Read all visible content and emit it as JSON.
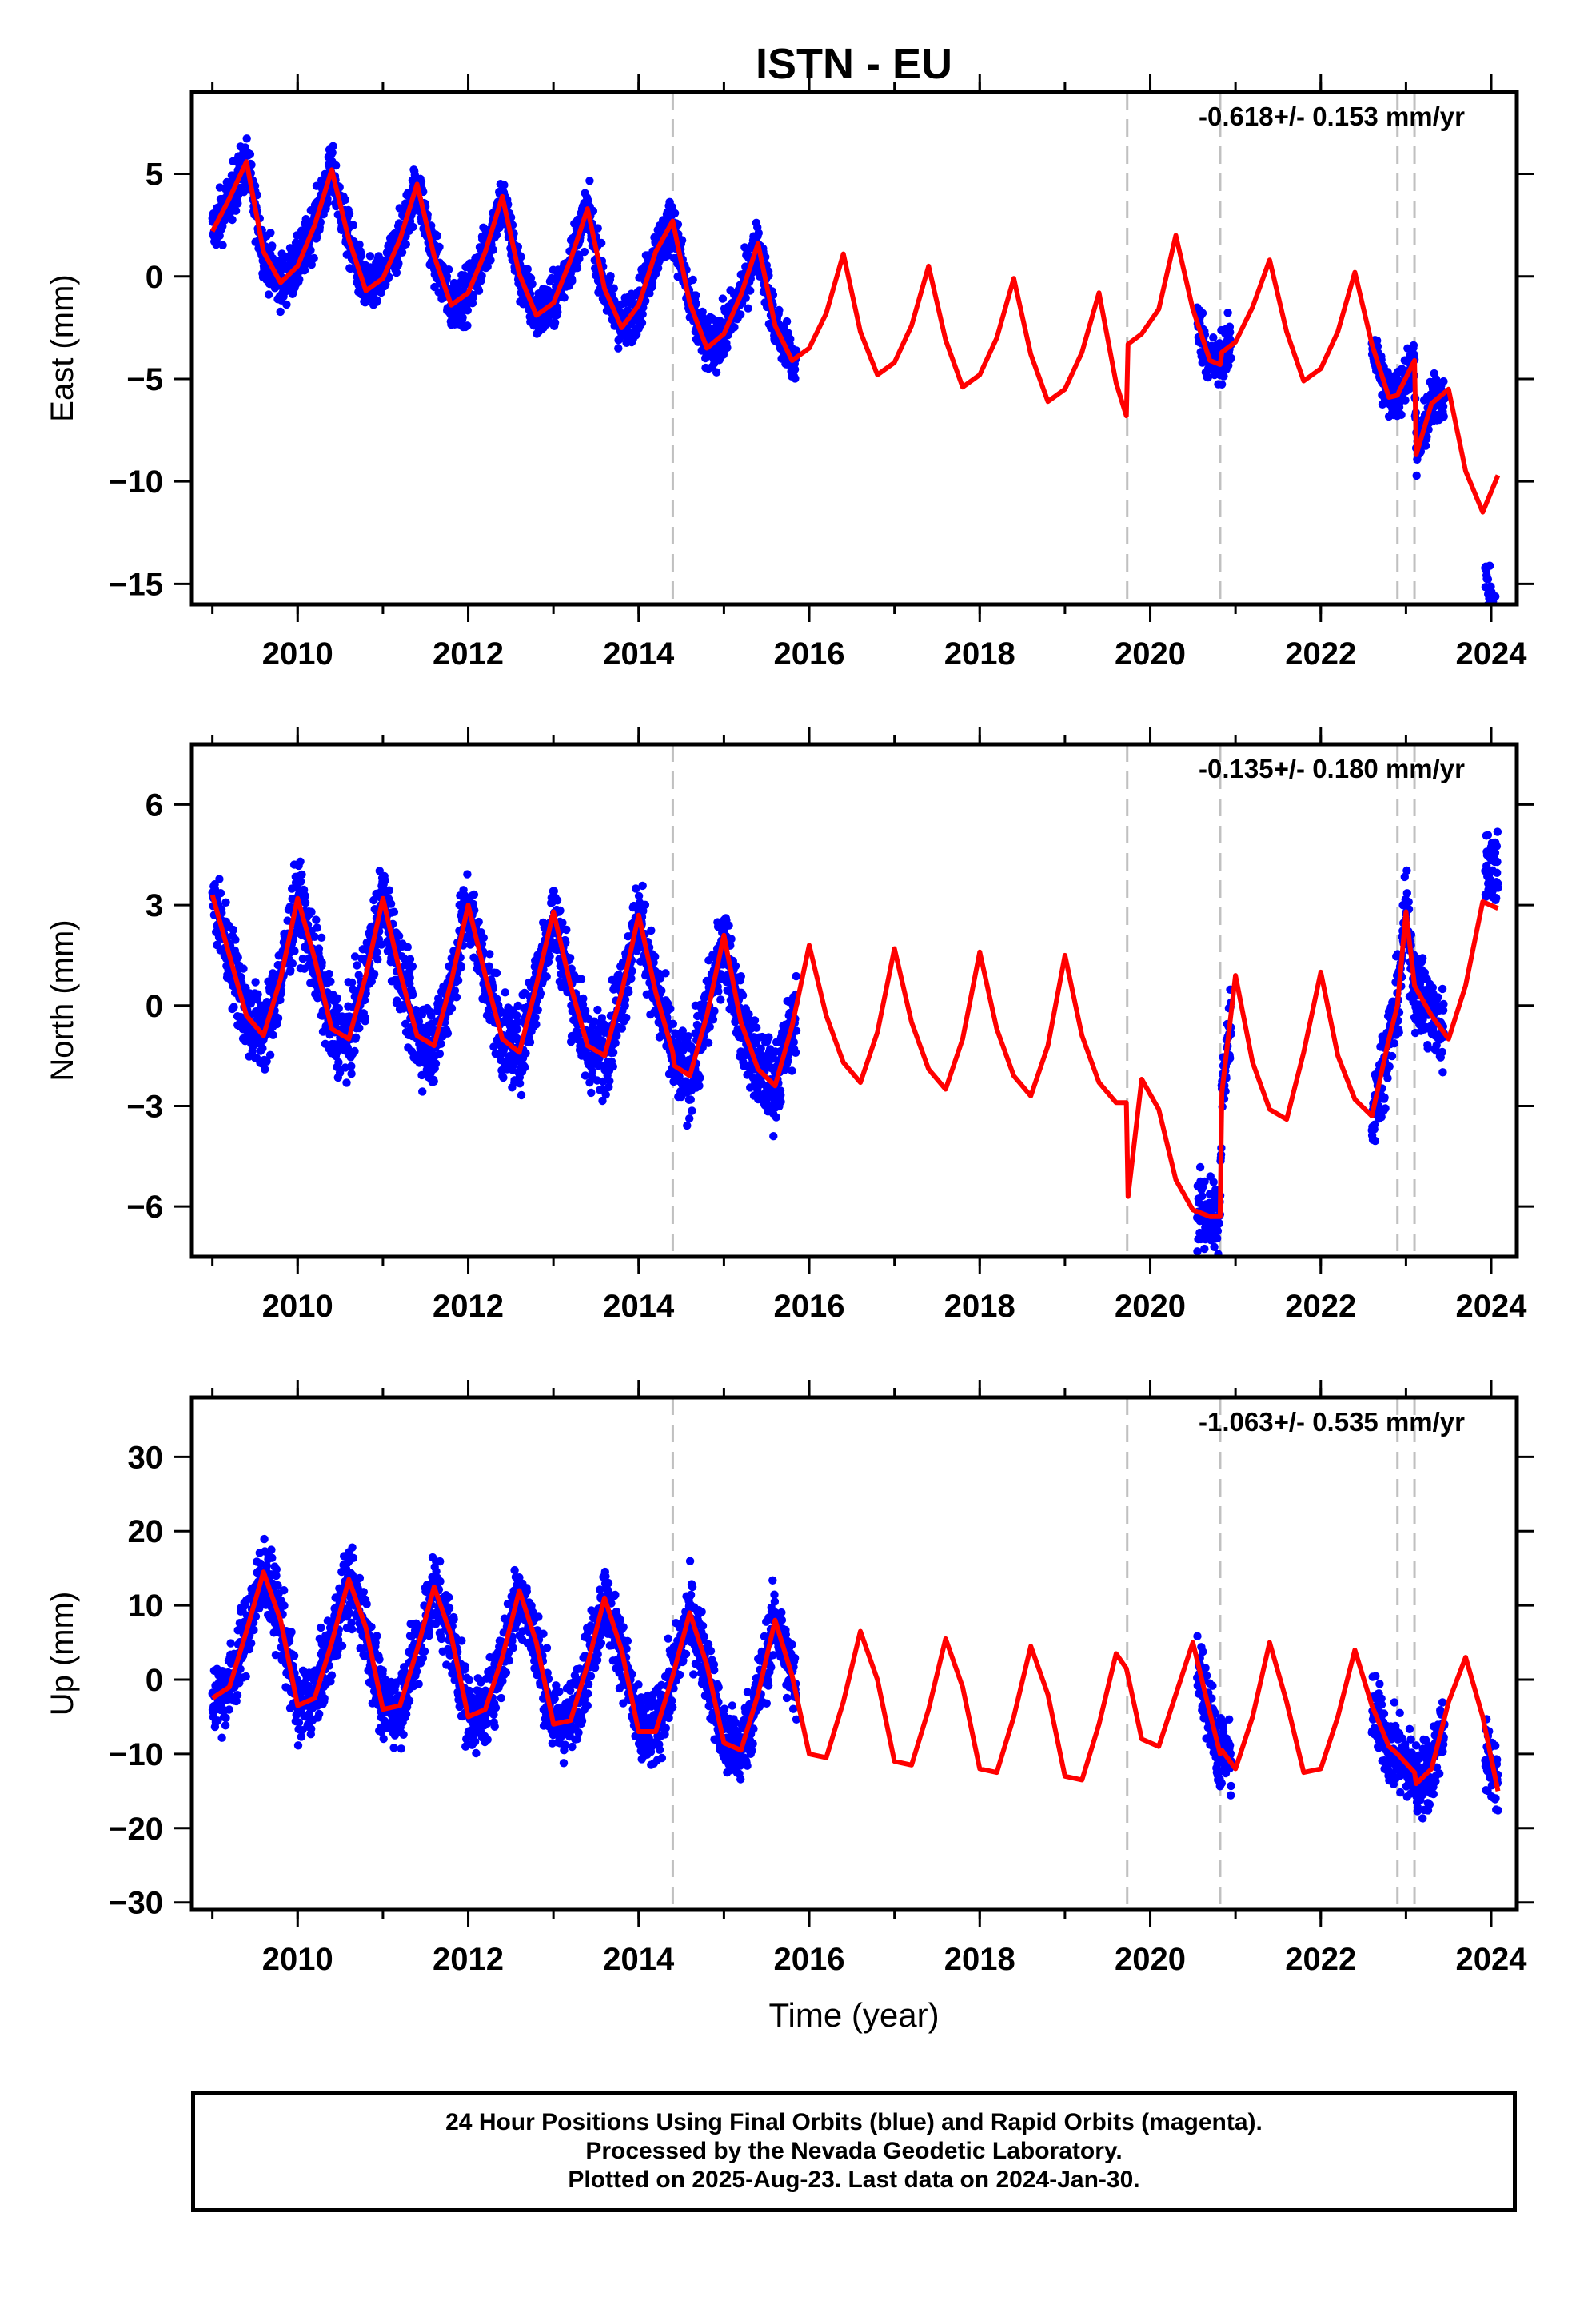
{
  "title": "ISTN - EU",
  "footer": {
    "line1": "24 Hour Positions Using Final Orbits (blue) and Rapid Orbits (magenta).",
    "line2": "Processed by the Nevada Geodetic Laboratory.",
    "line3": "Plotted on 2025-Aug-23. Last data on 2024-Jan-30."
  },
  "colors": {
    "data": "#0000ff",
    "model": "#ff0000",
    "breaks": "#c0c0c0"
  },
  "chart_data": [
    {
      "type": "scatter",
      "ylabel": "East (mm)",
      "xlabel": "",
      "xlim": [
        2008.75,
        2024.3
      ],
      "ylim": [
        -16,
        9
      ],
      "xticks": [
        2010,
        2012,
        2014,
        2016,
        2018,
        2020,
        2022,
        2024
      ],
      "yticks": [
        5,
        0,
        -5,
        -10,
        -15
      ],
      "rate": "-0.618+/- 0.153 mm/yr",
      "breaks": [
        2014.4,
        2019.73,
        2020.82,
        2022.9,
        2023.1
      ],
      "series": [
        {
          "kind": "points",
          "segments": [
            [
              2009.0,
              2015.85
            ],
            [
              2020.55,
              2020.95
            ],
            [
              2022.6,
              2023.45
            ],
            [
              2023.93,
              2024.08
            ]
          ]
        },
        {
          "kind": "model",
          "x": [
            2009.0,
            2009.2,
            2009.4,
            2009.6,
            2009.8,
            2010.0,
            2010.2,
            2010.4,
            2010.6,
            2010.8,
            2011.0,
            2011.2,
            2011.4,
            2011.6,
            2011.8,
            2012.0,
            2012.2,
            2012.4,
            2012.6,
            2012.8,
            2013.0,
            2013.2,
            2013.4,
            2013.6,
            2013.8,
            2014.0,
            2014.2,
            2014.4,
            2014.6,
            2014.8,
            2015.0,
            2015.2,
            2015.4,
            2015.6,
            2015.8,
            2016.0,
            2016.2,
            2016.4,
            2016.6,
            2016.8,
            2017.0,
            2017.2,
            2017.4,
            2017.6,
            2017.8,
            2018.0,
            2018.2,
            2018.4,
            2018.6,
            2018.8,
            2019.0,
            2019.2,
            2019.4,
            2019.6,
            2019.72,
            2019.74,
            2019.9,
            2020.1,
            2020.3,
            2020.5,
            2020.7,
            2020.82,
            2020.84,
            2021.0,
            2021.2,
            2021.4,
            2021.6,
            2021.8,
            2022.0,
            2022.2,
            2022.4,
            2022.6,
            2022.8,
            2022.9,
            2022.92,
            2023.1,
            2023.12,
            2023.3,
            2023.5,
            2023.7,
            2023.9,
            2024.08
          ],
          "y": [
            2.2,
            3.8,
            5.6,
            1.2,
            -0.3,
            0.5,
            2.5,
            5.2,
            1.8,
            -0.7,
            -0.1,
            1.8,
            4.5,
            1.0,
            -1.4,
            -0.8,
            1.2,
            3.9,
            0.1,
            -1.9,
            -1.3,
            0.8,
            3.3,
            -0.6,
            -2.5,
            -1.4,
            1.2,
            2.7,
            -1.3,
            -3.5,
            -2.8,
            -0.9,
            1.6,
            -2.4,
            -4.1,
            -3.5,
            -1.8,
            1.1,
            -2.7,
            -4.8,
            -4.2,
            -2.4,
            0.5,
            -3.1,
            -5.4,
            -4.8,
            -3.0,
            -0.1,
            -3.8,
            -6.1,
            -5.5,
            -3.7,
            -0.8,
            -5.2,
            -6.8,
            -3.3,
            -2.8,
            -1.6,
            2.0,
            -1.6,
            -4.1,
            -4.3,
            -3.7,
            -3.2,
            -1.5,
            0.8,
            -2.7,
            -5.1,
            -4.5,
            -2.7,
            0.2,
            -3.3,
            -5.9,
            -5.8,
            -5.6,
            -4.1,
            -8.7,
            -6.2,
            -5.5,
            -9.5,
            -11.5,
            -9.7
          ]
        }
      ]
    },
    {
      "type": "scatter",
      "ylabel": "North (mm)",
      "xlabel": "",
      "xlim": [
        2008.75,
        2024.3
      ],
      "ylim": [
        -7.5,
        7.8
      ],
      "xticks": [
        2010,
        2012,
        2014,
        2016,
        2018,
        2020,
        2022,
        2024
      ],
      "yticks": [
        6,
        3,
        0,
        -3,
        -6
      ],
      "rate": "-0.135+/- 0.180 mm/yr",
      "breaks": [
        2014.4,
        2019.73,
        2020.82,
        2022.9,
        2023.1
      ],
      "series": [
        {
          "kind": "points",
          "segments": [
            [
              2009.0,
              2015.85
            ],
            [
              2020.55,
              2020.95
            ],
            [
              2022.6,
              2023.45
            ],
            [
              2023.93,
              2024.08
            ]
          ]
        },
        {
          "kind": "model",
          "x": [
            2009.0,
            2009.2,
            2009.4,
            2009.6,
            2009.8,
            2010.0,
            2010.2,
            2010.4,
            2010.6,
            2010.8,
            2011.0,
            2011.2,
            2011.4,
            2011.6,
            2011.8,
            2012.0,
            2012.2,
            2012.4,
            2012.6,
            2012.8,
            2013.0,
            2013.2,
            2013.4,
            2013.6,
            2013.8,
            2014.0,
            2014.2,
            2014.4,
            2014.42,
            2014.6,
            2014.8,
            2015.0,
            2015.2,
            2015.4,
            2015.6,
            2015.8,
            2016.0,
            2016.2,
            2016.4,
            2016.6,
            2016.8,
            2017.0,
            2017.2,
            2017.4,
            2017.6,
            2017.8,
            2018.0,
            2018.2,
            2018.4,
            2018.6,
            2018.8,
            2019.0,
            2019.2,
            2019.4,
            2019.6,
            2019.72,
            2019.74,
            2019.9,
            2020.1,
            2020.3,
            2020.5,
            2020.7,
            2020.82,
            2020.84,
            2021.0,
            2021.2,
            2021.4,
            2021.6,
            2021.8,
            2022.0,
            2022.2,
            2022.4,
            2022.6,
            2022.8,
            2022.9,
            2023.0,
            2023.1,
            2023.12,
            2023.3,
            2023.5,
            2023.7,
            2023.9,
            2024.08
          ],
          "y": [
            3.3,
            1.5,
            -0.3,
            -0.9,
            0.8,
            3.2,
            1.4,
            -0.7,
            -1.0,
            0.9,
            3.2,
            1.0,
            -0.9,
            -1.2,
            0.7,
            3.0,
            0.9,
            -1.0,
            -1.4,
            0.6,
            2.8,
            0.6,
            -1.2,
            -1.5,
            0.4,
            2.7,
            0.4,
            -1.4,
            -1.8,
            -2.1,
            -0.3,
            2.1,
            -0.5,
            -1.9,
            -2.4,
            -0.6,
            1.8,
            -0.3,
            -1.7,
            -2.3,
            -0.8,
            1.7,
            -0.5,
            -1.9,
            -2.5,
            -1.0,
            1.6,
            -0.7,
            -2.1,
            -2.7,
            -1.2,
            1.5,
            -0.9,
            -2.3,
            -2.9,
            -2.9,
            -5.7,
            -2.2,
            -3.1,
            -5.2,
            -6.1,
            -6.3,
            -6.3,
            -2.6,
            0.9,
            -1.7,
            -3.1,
            -3.4,
            -1.4,
            1.0,
            -1.5,
            -2.8,
            -3.3,
            -1.0,
            0.0,
            2.8,
            0.6,
            0.5,
            -0.3,
            -1.0,
            0.6,
            3.1,
            2.9
          ]
        }
      ]
    },
    {
      "type": "scatter",
      "ylabel": "Up (mm)",
      "xlabel": "Time (year)",
      "xlim": [
        2008.75,
        2024.3
      ],
      "ylim": [
        -31,
        38
      ],
      "xticks": [
        2010,
        2012,
        2014,
        2016,
        2018,
        2020,
        2022,
        2024
      ],
      "yticks": [
        30,
        20,
        10,
        0,
        -10,
        -20,
        -30
      ],
      "rate": "-1.063+/- 0.535 mm/yr",
      "breaks": [
        2014.4,
        2019.73,
        2020.82,
        2022.9,
        2023.1
      ],
      "series": [
        {
          "kind": "points",
          "segments": [
            [
              2009.0,
              2015.85
            ],
            [
              2020.55,
              2020.95
            ],
            [
              2022.6,
              2023.45
            ],
            [
              2023.93,
              2024.08
            ]
          ]
        },
        {
          "kind": "model",
          "x": [
            2009.0,
            2009.2,
            2009.4,
            2009.6,
            2009.8,
            2010.0,
            2010.2,
            2010.4,
            2010.6,
            2010.8,
            2011.0,
            2011.2,
            2011.4,
            2011.6,
            2011.8,
            2012.0,
            2012.2,
            2012.4,
            2012.6,
            2012.8,
            2013.0,
            2013.2,
            2013.4,
            2013.6,
            2013.8,
            2014.0,
            2014.2,
            2014.4,
            2014.6,
            2014.8,
            2015.0,
            2015.2,
            2015.4,
            2015.6,
            2015.8,
            2016.0,
            2016.2,
            2016.4,
            2016.6,
            2016.8,
            2017.0,
            2017.2,
            2017.4,
            2017.6,
            2017.8,
            2018.0,
            2018.2,
            2018.4,
            2018.6,
            2018.8,
            2019.0,
            2019.2,
            2019.4,
            2019.6,
            2019.72,
            2019.74,
            2019.9,
            2020.1,
            2020.3,
            2020.5,
            2020.7,
            2020.82,
            2020.84,
            2021.0,
            2021.2,
            2021.4,
            2021.6,
            2021.8,
            2022.0,
            2022.2,
            2022.4,
            2022.6,
            2022.8,
            2022.9,
            2023.1,
            2023.12,
            2023.3,
            2023.5,
            2023.7,
            2023.9,
            2024.08
          ],
          "y": [
            -2.5,
            -1.0,
            6.5,
            14.5,
            8.0,
            -3.5,
            -2.5,
            5.0,
            13.5,
            7.0,
            -4.0,
            -3.5,
            4.0,
            12.5,
            6.0,
            -5.0,
            -4.0,
            3.0,
            12.0,
            5.0,
            -6.0,
            -5.5,
            2.0,
            11.0,
            4.0,
            -7.0,
            -7.0,
            0.5,
            9.0,
            2.0,
            -8.5,
            -9.5,
            -2.0,
            8.0,
            0.5,
            -10.0,
            -10.5,
            -3.0,
            6.5,
            0.0,
            -11.0,
            -11.5,
            -4.0,
            5.5,
            -1.0,
            -12.0,
            -12.5,
            -5.0,
            4.5,
            -2.0,
            -13.0,
            -13.5,
            -6.0,
            3.5,
            1.5,
            0.5,
            -8.0,
            -9.0,
            -2.0,
            5.0,
            -4.5,
            -10.0,
            -9.5,
            -12.0,
            -5.0,
            5.0,
            -3.0,
            -12.5,
            -12.0,
            -5.0,
            4.0,
            -3.5,
            -9.0,
            -10.0,
            -12.5,
            -14.0,
            -12.0,
            -3.0,
            3.0,
            -5.0,
            -15.0
          ]
        }
      ]
    }
  ]
}
